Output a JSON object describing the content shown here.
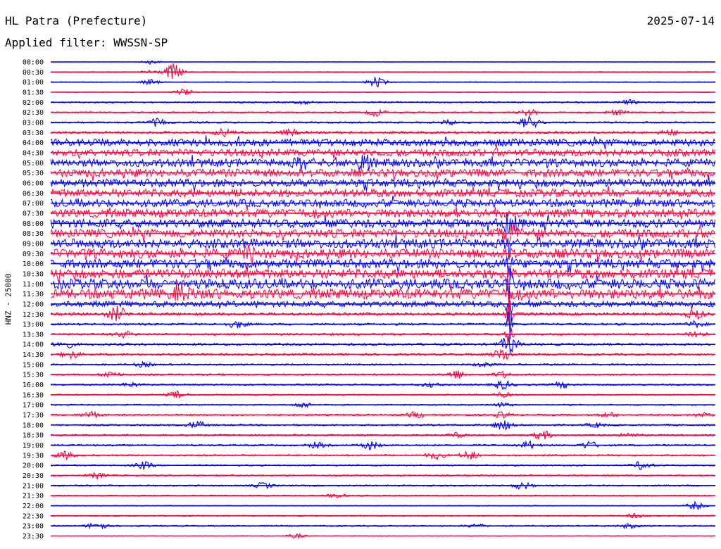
{
  "header": {
    "station": "HL Patra (Prefecture)",
    "date": "2025-07-14",
    "filter": "Applied filter: WWSSN-SP"
  },
  "chart_data": {
    "type": "line",
    "subtype": "helicorder",
    "ylabel": "HNZ - 25000",
    "colors": {
      "even_row": "#0000ff",
      "odd_row": "#ff0040"
    },
    "rows": [
      {
        "time": "00:00",
        "noise": 0.3,
        "events": [
          {
            "x": 0.15,
            "amp": 3
          }
        ]
      },
      {
        "time": "00:30",
        "noise": 0.6,
        "events": [
          {
            "x": 0.185,
            "amp": 12
          },
          {
            "x": 0.15,
            "amp": 3
          }
        ]
      },
      {
        "time": "01:00",
        "noise": 0.6,
        "events": [
          {
            "x": 0.49,
            "amp": 7
          },
          {
            "x": 0.15,
            "amp": 4
          }
        ]
      },
      {
        "time": "01:30",
        "noise": 0.6,
        "events": [
          {
            "x": 0.2,
            "amp": 5
          }
        ]
      },
      {
        "time": "02:00",
        "noise": 1.0,
        "events": [
          {
            "x": 0.38,
            "amp": 2
          },
          {
            "x": 0.87,
            "amp": 3
          }
        ]
      },
      {
        "time": "02:30",
        "noise": 1.0,
        "events": [
          {
            "x": 0.49,
            "amp": 5
          },
          {
            "x": 0.72,
            "amp": 4
          },
          {
            "x": 0.85,
            "amp": 4
          }
        ]
      },
      {
        "time": "03:00",
        "noise": 1.2,
        "events": [
          {
            "x": 0.16,
            "amp": 5
          },
          {
            "x": 0.6,
            "amp": 3
          },
          {
            "x": 0.72,
            "amp": 9
          }
        ]
      },
      {
        "time": "03:30",
        "noise": 1.6,
        "events": [
          {
            "x": 0.26,
            "amp": 5
          },
          {
            "x": 0.36,
            "amp": 4
          },
          {
            "x": 0.93,
            "amp": 4
          }
        ]
      },
      {
        "time": "04:00",
        "noise": 5.0,
        "events": []
      },
      {
        "time": "04:30",
        "noise": 5.0,
        "events": []
      },
      {
        "time": "05:00",
        "noise": 5.5,
        "events": [
          {
            "x": 0.38,
            "amp": 7
          },
          {
            "x": 0.47,
            "amp": 10
          }
        ]
      },
      {
        "time": "05:30",
        "noise": 5.5,
        "events": []
      },
      {
        "time": "06:00",
        "noise": 5.5,
        "events": []
      },
      {
        "time": "06:30",
        "noise": 5.5,
        "events": []
      },
      {
        "time": "07:00",
        "noise": 5.5,
        "events": []
      },
      {
        "time": "07:30",
        "noise": 6.0,
        "events": []
      },
      {
        "time": "08:00",
        "noise": 6.0,
        "events": [
          {
            "x": 0.69,
            "amp": 9
          }
        ]
      },
      {
        "time": "08:30",
        "noise": 6.0,
        "events": [
          {
            "x": 0.69,
            "amp": 14
          }
        ]
      },
      {
        "time": "09:00",
        "noise": 6.5,
        "events": [
          {
            "x": 0.69,
            "amp": 22
          }
        ]
      },
      {
        "time": "09:30",
        "noise": 6.5,
        "events": [
          {
            "x": 0.3,
            "amp": 9
          },
          {
            "x": 0.69,
            "amp": 22
          }
        ]
      },
      {
        "time": "10:00",
        "noise": 6.5,
        "events": [
          {
            "x": 0.69,
            "amp": 22
          }
        ]
      },
      {
        "time": "10:30",
        "noise": 6.5,
        "events": [
          {
            "x": 0.69,
            "amp": 22
          }
        ]
      },
      {
        "time": "11:00",
        "noise": 7.0,
        "events": [
          {
            "x": 0.69,
            "amp": 22
          }
        ]
      },
      {
        "time": "11:30",
        "noise": 7.0,
        "events": [
          {
            "x": 0.2,
            "amp": 9
          },
          {
            "x": 0.69,
            "amp": 22
          }
        ]
      },
      {
        "time": "12:00",
        "noise": 4.0,
        "events": [
          {
            "x": 0.69,
            "amp": 22
          }
        ]
      },
      {
        "time": "12:30",
        "noise": 2.0,
        "events": [
          {
            "x": 0.1,
            "amp": 10
          },
          {
            "x": 0.69,
            "amp": 22
          },
          {
            "x": 0.97,
            "amp": 6
          }
        ]
      },
      {
        "time": "13:00",
        "noise": 1.5,
        "events": [
          {
            "x": 0.28,
            "amp": 5
          },
          {
            "x": 0.69,
            "amp": 22
          },
          {
            "x": 0.97,
            "amp": 4
          }
        ]
      },
      {
        "time": "13:30",
        "noise": 1.5,
        "events": [
          {
            "x": 0.11,
            "amp": 4
          },
          {
            "x": 0.69,
            "amp": 22
          },
          {
            "x": 0.97,
            "amp": 5
          }
        ]
      },
      {
        "time": "14:00",
        "noise": 1.5,
        "events": [
          {
            "x": 0.02,
            "amp": 6
          },
          {
            "x": 0.69,
            "amp": 12
          }
        ]
      },
      {
        "time": "14:30",
        "noise": 1.5,
        "events": [
          {
            "x": 0.03,
            "amp": 5
          },
          {
            "x": 0.68,
            "amp": 9
          }
        ]
      },
      {
        "time": "15:00",
        "noise": 1.2,
        "events": [
          {
            "x": 0.14,
            "amp": 3
          },
          {
            "x": 0.65,
            "amp": 3
          }
        ]
      },
      {
        "time": "15:30",
        "noise": 1.2,
        "events": [
          {
            "x": 0.09,
            "amp": 5
          },
          {
            "x": 0.61,
            "amp": 6
          },
          {
            "x": 0.68,
            "amp": 4
          }
        ]
      },
      {
        "time": "16:00",
        "noise": 1.2,
        "events": [
          {
            "x": 0.12,
            "amp": 3
          },
          {
            "x": 0.57,
            "amp": 3
          },
          {
            "x": 0.68,
            "amp": 6
          },
          {
            "x": 0.77,
            "amp": 4
          }
        ]
      },
      {
        "time": "16:30",
        "noise": 1.0,
        "events": [
          {
            "x": 0.19,
            "amp": 5
          },
          {
            "x": 0.68,
            "amp": 3
          }
        ]
      },
      {
        "time": "17:00",
        "noise": 0.9,
        "events": [
          {
            "x": 0.38,
            "amp": 4
          },
          {
            "x": 0.68,
            "amp": 3
          }
        ]
      },
      {
        "time": "17:30",
        "noise": 1.2,
        "events": [
          {
            "x": 0.06,
            "amp": 5
          },
          {
            "x": 0.55,
            "amp": 4
          },
          {
            "x": 0.68,
            "amp": 4
          },
          {
            "x": 0.84,
            "amp": 3
          },
          {
            "x": 0.98,
            "amp": 3
          }
        ]
      },
      {
        "time": "18:00",
        "noise": 1.2,
        "events": [
          {
            "x": 0.22,
            "amp": 5
          },
          {
            "x": 0.68,
            "amp": 7
          },
          {
            "x": 0.82,
            "amp": 3
          }
        ]
      },
      {
        "time": "18:30",
        "noise": 1.2,
        "events": [
          {
            "x": 0.61,
            "amp": 3
          },
          {
            "x": 0.74,
            "amp": 6
          },
          {
            "x": 0.87,
            "amp": 3
          }
        ]
      },
      {
        "time": "19:00",
        "noise": 1.2,
        "events": [
          {
            "x": 0.4,
            "amp": 4
          },
          {
            "x": 0.48,
            "amp": 6
          },
          {
            "x": 0.72,
            "amp": 5
          },
          {
            "x": 0.81,
            "amp": 5
          }
        ]
      },
      {
        "time": "19:30",
        "noise": 1.2,
        "events": [
          {
            "x": 0.02,
            "amp": 5
          },
          {
            "x": 0.58,
            "amp": 5
          },
          {
            "x": 0.63,
            "amp": 6
          }
        ]
      },
      {
        "time": "20:00",
        "noise": 1.0,
        "events": [
          {
            "x": 0.14,
            "amp": 5
          },
          {
            "x": 0.89,
            "amp": 6
          }
        ]
      },
      {
        "time": "20:30",
        "noise": 1.0,
        "events": [
          {
            "x": 0.07,
            "amp": 4
          }
        ]
      },
      {
        "time": "21:00",
        "noise": 1.0,
        "events": [
          {
            "x": 0.32,
            "amp": 4
          },
          {
            "x": 0.71,
            "amp": 5
          }
        ]
      },
      {
        "time": "21:30",
        "noise": 0.9,
        "events": [
          {
            "x": 0.43,
            "amp": 3
          }
        ]
      },
      {
        "time": "22:00",
        "noise": 0.6,
        "events": [
          {
            "x": 0.97,
            "amp": 5
          }
        ]
      },
      {
        "time": "22:30",
        "noise": 0.8,
        "events": [
          {
            "x": 0.88,
            "amp": 3
          }
        ]
      },
      {
        "time": "23:00",
        "noise": 1.0,
        "events": [
          {
            "x": 0.07,
            "amp": 6
          },
          {
            "x": 0.64,
            "amp": 3
          },
          {
            "x": 0.87,
            "amp": 3
          }
        ]
      },
      {
        "time": "23:30",
        "noise": 0.5,
        "events": [
          {
            "x": 0.37,
            "amp": 3
          }
        ]
      }
    ]
  }
}
